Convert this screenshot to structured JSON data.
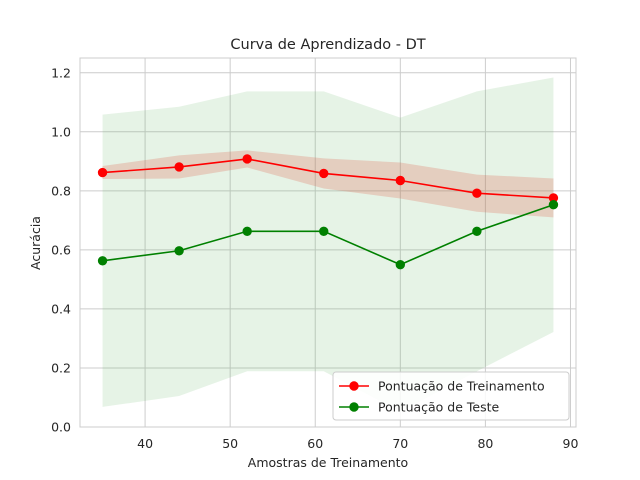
{
  "chart_data": {
    "type": "line",
    "title": "Curva de Aprendizado - DT",
    "xlabel": "Amostras de Treinamento",
    "ylabel": "Acurácia",
    "xlim": [
      32.35,
      90.65
    ],
    "ylim": [
      0.0,
      1.25
    ],
    "xticks": [
      40,
      50,
      60,
      70,
      80,
      90
    ],
    "yticks": [
      0.0,
      0.2,
      0.4,
      0.6,
      0.8,
      1.0,
      1.2
    ],
    "grid": true,
    "legend_position": "lower-right",
    "x": [
      35,
      44,
      52,
      61,
      70,
      79,
      88
    ],
    "series": [
      {
        "name": "Pontuação de Treinamento",
        "color": "#ff0000",
        "band_color": "#e0604a",
        "values": [
          0.862,
          0.881,
          0.908,
          0.859,
          0.835,
          0.792,
          0.776
        ],
        "band_upper": [
          0.884,
          0.92,
          0.937,
          0.91,
          0.896,
          0.855,
          0.842
        ],
        "band_lower": [
          0.84,
          0.842,
          0.879,
          0.808,
          0.774,
          0.729,
          0.71
        ]
      },
      {
        "name": "Pontuação de Teste",
        "color": "#008000",
        "band_color": "#6ab86a",
        "values": [
          0.563,
          0.597,
          0.663,
          0.663,
          0.55,
          0.663,
          0.753
        ],
        "band_upper": [
          1.058,
          1.085,
          1.137,
          1.137,
          1.048,
          1.137,
          1.184
        ],
        "band_lower": [
          0.068,
          0.105,
          0.189,
          0.189,
          0.052,
          0.189,
          0.322
        ]
      }
    ]
  }
}
